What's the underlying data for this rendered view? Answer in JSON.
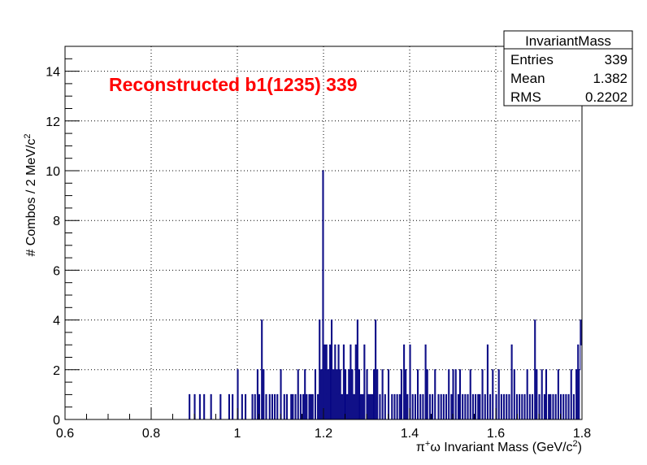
{
  "chart_data": {
    "type": "histogram",
    "title": "",
    "annotation": "Reconstructed b1(1235) 339",
    "xlabel": {
      "prefix": "π",
      "sup1": "+",
      "middle": "ω Invariant Mass (GeV/c",
      "sup2": "2",
      "suffix": ")"
    },
    "ylabel": {
      "main": "# Combos / 2 MeV/c",
      "sup": "2"
    },
    "xlim": [
      0.6,
      1.8
    ],
    "ylim": [
      0,
      15
    ],
    "x_ticks": [
      0.6,
      0.8,
      1.0,
      1.2,
      1.4,
      1.6,
      1.8
    ],
    "x_tick_labels": [
      "0.6",
      "0.8",
      "1",
      "1.2",
      "1.4",
      "1.6",
      "1.8"
    ],
    "y_ticks": [
      0,
      2,
      4,
      6,
      8,
      10,
      12,
      14
    ],
    "y_tick_labels": [
      "0",
      "2",
      "4",
      "6",
      "8",
      "10",
      "12",
      "14"
    ],
    "grid": true,
    "bin_width": 0.002,
    "line_color": "#000080",
    "annotation_color": "#ff0000",
    "stats_box": {
      "title": "InvariantMass",
      "rows": [
        {
          "label": "Entries",
          "value": "339"
        },
        {
          "label": "Mean",
          "value": "1.382"
        },
        {
          "label": "RMS",
          "value": "0.2202"
        }
      ]
    },
    "bins": [
      [
        0.888,
        1
      ],
      [
        0.9,
        1
      ],
      [
        0.912,
        1
      ],
      [
        0.922,
        1
      ],
      [
        0.938,
        1
      ],
      [
        0.96,
        1
      ],
      [
        0.98,
        1
      ],
      [
        0.988,
        1
      ],
      [
        1.0,
        2
      ],
      [
        1.01,
        1
      ],
      [
        1.018,
        1
      ],
      [
        1.034,
        1
      ],
      [
        1.04,
        1
      ],
      [
        1.046,
        2
      ],
      [
        1.05,
        1
      ],
      [
        1.056,
        4
      ],
      [
        1.06,
        2
      ],
      [
        1.066,
        1
      ],
      [
        1.074,
        1
      ],
      [
        1.08,
        1
      ],
      [
        1.086,
        1
      ],
      [
        1.092,
        1
      ],
      [
        1.1,
        2
      ],
      [
        1.108,
        1
      ],
      [
        1.114,
        1
      ],
      [
        1.124,
        1
      ],
      [
        1.128,
        1
      ],
      [
        1.134,
        1
      ],
      [
        1.14,
        2
      ],
      [
        1.146,
        1
      ],
      [
        1.152,
        1
      ],
      [
        1.156,
        2
      ],
      [
        1.16,
        1
      ],
      [
        1.166,
        1
      ],
      [
        1.17,
        1
      ],
      [
        1.174,
        1
      ],
      [
        1.18,
        2
      ],
      [
        1.186,
        1
      ],
      [
        1.19,
        4
      ],
      [
        1.194,
        2
      ],
      [
        1.198,
        10
      ],
      [
        1.202,
        3
      ],
      [
        1.206,
        3
      ],
      [
        1.21,
        2
      ],
      [
        1.214,
        3
      ],
      [
        1.218,
        4
      ],
      [
        1.222,
        2
      ],
      [
        1.226,
        3
      ],
      [
        1.23,
        2
      ],
      [
        1.234,
        3
      ],
      [
        1.238,
        2
      ],
      [
        1.242,
        1
      ],
      [
        1.246,
        3
      ],
      [
        1.25,
        2
      ],
      [
        1.254,
        1
      ],
      [
        1.258,
        2
      ],
      [
        1.262,
        3
      ],
      [
        1.266,
        2
      ],
      [
        1.27,
        1
      ],
      [
        1.274,
        3
      ],
      [
        1.278,
        4
      ],
      [
        1.282,
        2
      ],
      [
        1.286,
        1
      ],
      [
        1.29,
        1
      ],
      [
        1.294,
        3
      ],
      [
        1.3,
        2
      ],
      [
        1.304,
        1
      ],
      [
        1.308,
        1
      ],
      [
        1.312,
        1
      ],
      [
        1.316,
        2
      ],
      [
        1.32,
        4
      ],
      [
        1.324,
        2
      ],
      [
        1.33,
        1
      ],
      [
        1.336,
        2
      ],
      [
        1.342,
        1
      ],
      [
        1.35,
        2
      ],
      [
        1.358,
        1
      ],
      [
        1.364,
        1
      ],
      [
        1.37,
        1
      ],
      [
        1.376,
        1
      ],
      [
        1.38,
        2
      ],
      [
        1.386,
        3
      ],
      [
        1.39,
        2
      ],
      [
        1.394,
        1
      ],
      [
        1.4,
        3
      ],
      [
        1.406,
        1
      ],
      [
        1.412,
        1
      ],
      [
        1.418,
        2
      ],
      [
        1.424,
        1
      ],
      [
        1.43,
        1
      ],
      [
        1.436,
        3
      ],
      [
        1.44,
        2
      ],
      [
        1.446,
        1
      ],
      [
        1.452,
        1
      ],
      [
        1.458,
        2
      ],
      [
        1.466,
        1
      ],
      [
        1.472,
        1
      ],
      [
        1.478,
        1
      ],
      [
        1.484,
        1
      ],
      [
        1.49,
        2
      ],
      [
        1.496,
        1
      ],
      [
        1.5,
        2
      ],
      [
        1.506,
        2
      ],
      [
        1.512,
        1
      ],
      [
        1.516,
        2
      ],
      [
        1.522,
        1
      ],
      [
        1.528,
        1
      ],
      [
        1.534,
        1
      ],
      [
        1.54,
        2
      ],
      [
        1.546,
        1
      ],
      [
        1.552,
        1
      ],
      [
        1.558,
        1
      ],
      [
        1.562,
        1
      ],
      [
        1.568,
        2
      ],
      [
        1.574,
        1
      ],
      [
        1.58,
        3
      ],
      [
        1.586,
        1
      ],
      [
        1.592,
        2
      ],
      [
        1.6,
        1
      ],
      [
        1.606,
        2
      ],
      [
        1.612,
        1
      ],
      [
        1.618,
        1
      ],
      [
        1.624,
        1
      ],
      [
        1.63,
        1
      ],
      [
        1.636,
        3
      ],
      [
        1.642,
        2
      ],
      [
        1.648,
        1
      ],
      [
        1.654,
        1
      ],
      [
        1.66,
        1
      ],
      [
        1.666,
        1
      ],
      [
        1.672,
        2
      ],
      [
        1.678,
        1
      ],
      [
        1.684,
        1
      ],
      [
        1.69,
        4
      ],
      [
        1.694,
        2
      ],
      [
        1.7,
        1
      ],
      [
        1.706,
        2
      ],
      [
        1.712,
        1
      ],
      [
        1.716,
        2
      ],
      [
        1.722,
        1
      ],
      [
        1.726,
        1
      ],
      [
        1.732,
        1
      ],
      [
        1.738,
        1
      ],
      [
        1.744,
        2
      ],
      [
        1.75,
        1
      ],
      [
        1.756,
        1
      ],
      [
        1.762,
        1
      ],
      [
        1.768,
        1
      ],
      [
        1.774,
        2
      ],
      [
        1.78,
        1
      ],
      [
        1.786,
        2
      ],
      [
        1.79,
        3
      ],
      [
        1.794,
        2
      ],
      [
        1.796,
        4
      ],
      [
        1.798,
        3
      ]
    ]
  }
}
